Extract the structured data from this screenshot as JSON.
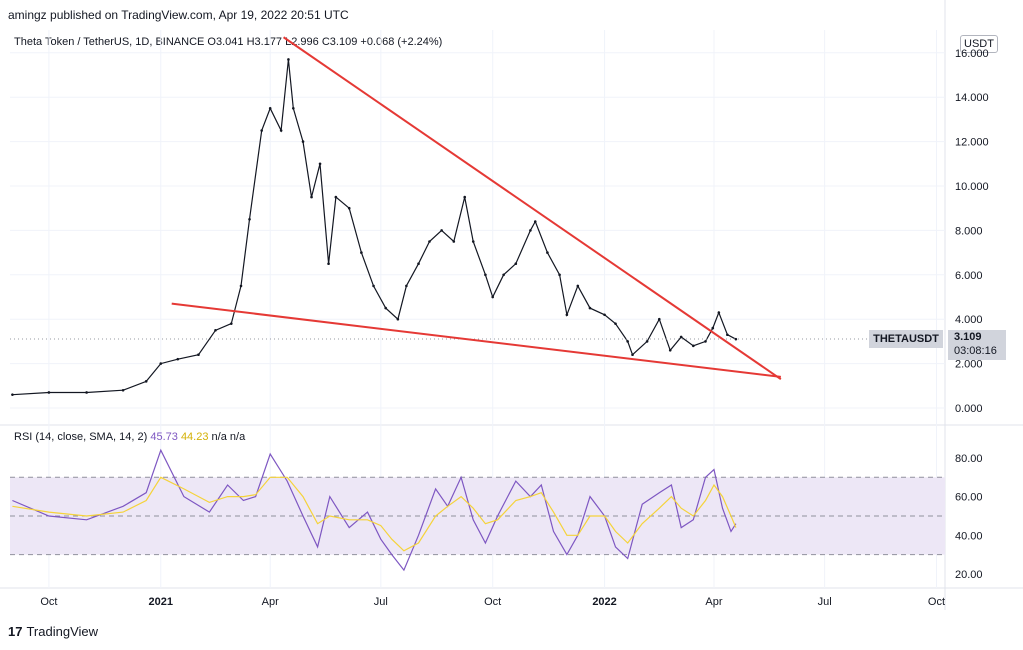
{
  "header": {
    "published": "amingz published on TradingView.com, Apr 19, 2022 20:51 UTC"
  },
  "symbol": {
    "name": "Theta Token / TetherUS, 1D, BINANCE",
    "open": "O3.041",
    "high": "H3.177",
    "low": "L2.996",
    "close": "C3.109",
    "change": "+0.068 (+2.24%)"
  },
  "currency": "USDT",
  "ticker_badge": "THETAUSDT",
  "price_tag": {
    "price": "3.109",
    "countdown": "03:08:16"
  },
  "rsi_legend": {
    "label": "RSI (14, close, SMA, 14, 2)",
    "rsi": "45.73",
    "sma": "44.23",
    "na1": "n/a",
    "na2": "n/a"
  },
  "footer": {
    "brand": "TradingView",
    "logo_text": "17"
  },
  "colors": {
    "trendline": "#e53935",
    "rsi": "#7e57c2",
    "rsi_sma": "#f5d33a",
    "rsi_band": "#ede7f6",
    "candle": "#131722"
  },
  "chart_data": [
    {
      "type": "line",
      "title": "Theta Token / TetherUS, 1D, BINANCE",
      "x_tick_labels": [
        "Oct",
        "2021",
        "Apr",
        "Jul",
        "Oct",
        "2022",
        "Apr",
        "Jul",
        "Oct"
      ],
      "y_tick_labels": [
        "0.000",
        "2.000",
        "4.000",
        "6.000",
        "8.000",
        "10.000",
        "12.000",
        "14.000",
        "16.000"
      ],
      "ylim": [
        0,
        16
      ],
      "series": [
        {
          "x": [
            "2020-09-01",
            "2020-10-01",
            "2020-11-01",
            "2020-12-01",
            "2020-12-20",
            "2021-01-01",
            "2021-01-15",
            "2021-02-01",
            "2021-02-15",
            "2021-02-28",
            "2021-03-08",
            "2021-03-15",
            "2021-03-25",
            "2021-04-01",
            "2021-04-10",
            "2021-04-16",
            "2021-04-20",
            "2021-04-28",
            "2021-05-05",
            "2021-05-12",
            "2021-05-19",
            "2021-05-25",
            "2021-06-05",
            "2021-06-15",
            "2021-06-25",
            "2021-07-05",
            "2021-07-15",
            "2021-07-22",
            "2021-08-01",
            "2021-08-10",
            "2021-08-20",
            "2021-08-30",
            "2021-09-08",
            "2021-09-15",
            "2021-09-25",
            "2021-10-01",
            "2021-10-10",
            "2021-10-20",
            "2021-11-01",
            "2021-11-05",
            "2021-11-15",
            "2021-11-25",
            "2021-12-01",
            "2021-12-10",
            "2021-12-20",
            "2022-01-01",
            "2022-01-10",
            "2022-01-20",
            "2022-01-24",
            "2022-02-05",
            "2022-02-15",
            "2022-02-24",
            "2022-03-05",
            "2022-03-15",
            "2022-03-25",
            "2022-03-31",
            "2022-04-05",
            "2022-04-12",
            "2022-04-19"
          ],
          "values": [
            0.6,
            0.7,
            0.7,
            0.8,
            1.2,
            2.0,
            2.2,
            2.4,
            3.5,
            3.8,
            5.5,
            8.5,
            12.5,
            13.5,
            12.5,
            15.7,
            13.5,
            12.0,
            9.5,
            11.0,
            6.5,
            9.5,
            9.0,
            7.0,
            5.5,
            4.5,
            4.0,
            5.5,
            6.5,
            7.5,
            8.0,
            7.5,
            9.5,
            7.5,
            6.0,
            5.0,
            6.0,
            6.5,
            8.0,
            8.4,
            7.0,
            6.0,
            4.2,
            5.5,
            4.5,
            4.2,
            3.8,
            3.0,
            2.4,
            3.0,
            4.0,
            2.6,
            3.2,
            2.8,
            3.0,
            3.6,
            4.3,
            3.3,
            3.1
          ]
        }
      ],
      "trendlines": [
        {
          "name": "upper",
          "from": [
            "2021-04-12",
            16.7
          ],
          "to": [
            "2022-05-26",
            1.3
          ]
        },
        {
          "name": "lower",
          "from": [
            "2021-01-10",
            4.7
          ],
          "to": [
            "2022-05-26",
            1.4
          ]
        }
      ]
    },
    {
      "type": "line",
      "title": "RSI (14, close, SMA, 14, 2)",
      "y_tick_labels": [
        "20.00",
        "40.00",
        "60.00",
        "80.00"
      ],
      "ylim": [
        18,
        92
      ],
      "bands": [
        30,
        50,
        70
      ],
      "x": [
        "2020-09-01",
        "2020-10-01",
        "2020-11-01",
        "2020-12-01",
        "2020-12-20",
        "2021-01-01",
        "2021-01-20",
        "2021-02-10",
        "2021-02-25",
        "2021-03-10",
        "2021-03-20",
        "2021-04-01",
        "2021-04-15",
        "2021-04-28",
        "2021-05-10",
        "2021-05-20",
        "2021-06-05",
        "2021-06-20",
        "2021-07-01",
        "2021-07-10",
        "2021-07-20",
        "2021-08-01",
        "2021-08-15",
        "2021-08-25",
        "2021-09-05",
        "2021-09-15",
        "2021-09-25",
        "2021-10-05",
        "2021-10-20",
        "2021-11-01",
        "2021-11-10",
        "2021-11-20",
        "2021-12-01",
        "2021-12-10",
        "2021-12-20",
        "2022-01-01",
        "2022-01-10",
        "2022-01-20",
        "2022-02-01",
        "2022-02-15",
        "2022-02-25",
        "2022-03-05",
        "2022-03-15",
        "2022-03-25",
        "2022-04-01",
        "2022-04-08",
        "2022-04-15",
        "2022-04-19"
      ],
      "series": [
        {
          "name": "RSI",
          "values": [
            58,
            50,
            48,
            55,
            62,
            84,
            60,
            52,
            66,
            58,
            60,
            82,
            68,
            50,
            34,
            60,
            44,
            52,
            38,
            30,
            22,
            40,
            64,
            55,
            70,
            48,
            36,
            50,
            68,
            60,
            66,
            42,
            30,
            40,
            60,
            50,
            34,
            28,
            56,
            62,
            66,
            44,
            48,
            70,
            74,
            54,
            42,
            46
          ]
        },
        {
          "name": "SMA",
          "values": [
            55,
            52,
            50,
            52,
            58,
            70,
            64,
            57,
            60,
            60,
            61,
            70,
            70,
            60,
            46,
            50,
            48,
            48,
            45,
            38,
            32,
            36,
            50,
            55,
            60,
            54,
            46,
            48,
            58,
            60,
            62,
            52,
            40,
            40,
            50,
            50,
            42,
            36,
            46,
            54,
            60,
            54,
            50,
            58,
            66,
            60,
            50,
            44
          ]
        }
      ]
    }
  ]
}
